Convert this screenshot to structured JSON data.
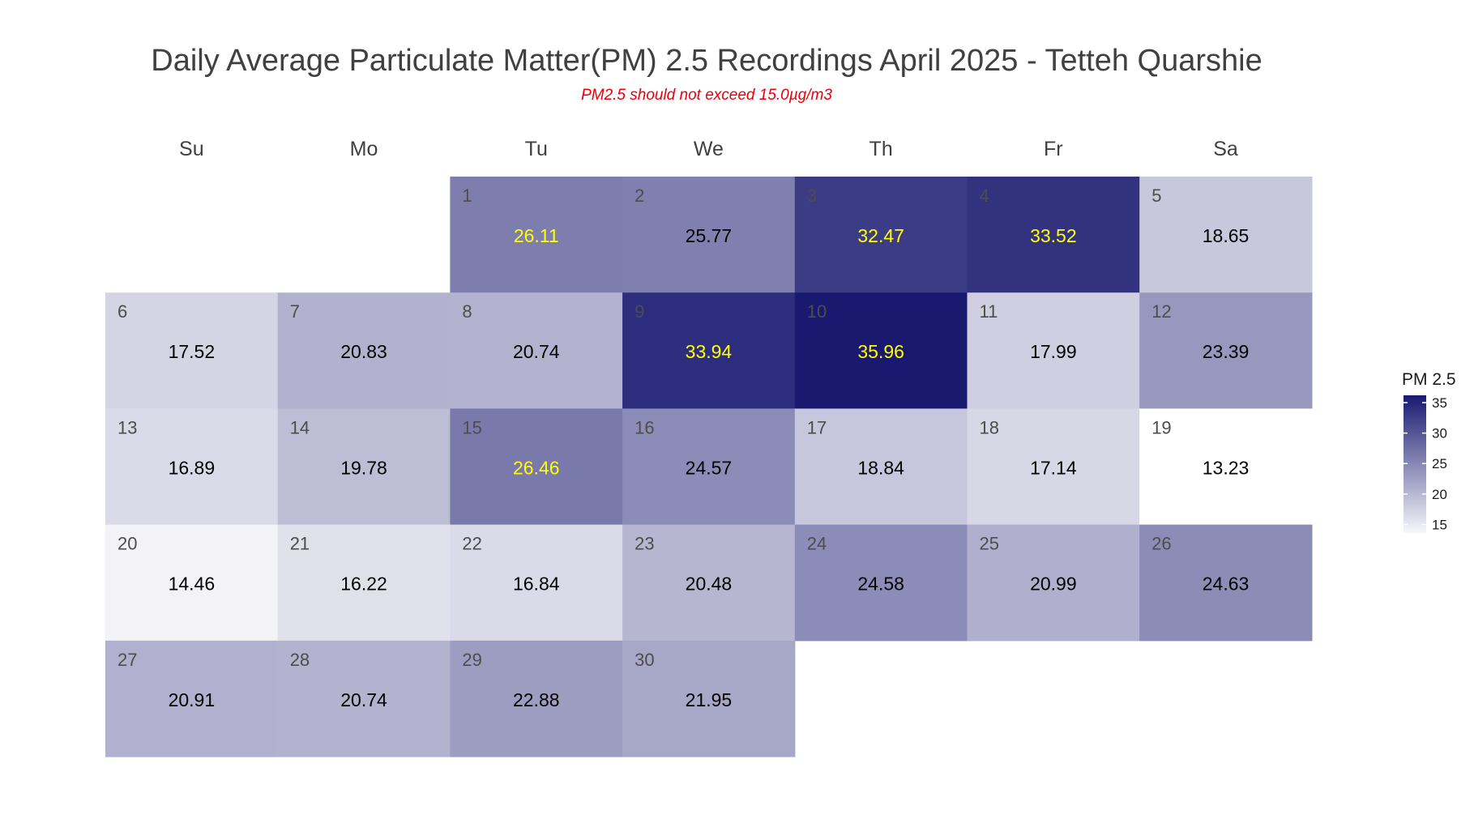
{
  "chart_data": {
    "type": "heatmap",
    "title": "Daily Average Particulate Matter(PM) 2.5 Recordings April 2025 -  Tetteh Quarshie",
    "subtitle": "PM2.5 should not exceed 15.0µg/m3",
    "weekdays": [
      "Su",
      "Mo",
      "Tu",
      "We",
      "Th",
      "Fr",
      "Sa"
    ],
    "first_weekday_index": 2,
    "days": [
      {
        "day": "1",
        "value": "26.11"
      },
      {
        "day": "2",
        "value": "25.77"
      },
      {
        "day": "3",
        "value": "32.47"
      },
      {
        "day": "4",
        "value": "33.52"
      },
      {
        "day": "5",
        "value": "18.65"
      },
      {
        "day": "6",
        "value": "17.52"
      },
      {
        "day": "7",
        "value": "20.83"
      },
      {
        "day": "8",
        "value": "20.74"
      },
      {
        "day": "9",
        "value": "33.94"
      },
      {
        "day": "10",
        "value": "35.96"
      },
      {
        "day": "11",
        "value": "17.99"
      },
      {
        "day": "12",
        "value": "23.39"
      },
      {
        "day": "13",
        "value": "16.89"
      },
      {
        "day": "14",
        "value": "19.78"
      },
      {
        "day": "15",
        "value": "26.46"
      },
      {
        "day": "16",
        "value": "24.57"
      },
      {
        "day": "17",
        "value": "18.84"
      },
      {
        "day": "18",
        "value": "17.14"
      },
      {
        "day": "19",
        "value": "13.23"
      },
      {
        "day": "20",
        "value": "14.46"
      },
      {
        "day": "21",
        "value": "16.22"
      },
      {
        "day": "22",
        "value": "16.84"
      },
      {
        "day": "23",
        "value": "20.48"
      },
      {
        "day": "24",
        "value": "24.58"
      },
      {
        "day": "25",
        "value": "20.99"
      },
      {
        "day": "26",
        "value": "24.63"
      },
      {
        "day": "27",
        "value": "20.91"
      },
      {
        "day": "28",
        "value": "20.74"
      },
      {
        "day": "29",
        "value": "22.88"
      },
      {
        "day": "30",
        "value": "21.95"
      }
    ],
    "color_scale": {
      "low_color": "#ffffff",
      "high_color": "#191970",
      "min": 13.23,
      "max": 35.96
    },
    "label_colors": {
      "normal": "#000000",
      "highlight": "#ffff00"
    },
    "highlight_days": [
      "1",
      "3",
      "4",
      "9",
      "10",
      "15"
    ],
    "legend": {
      "title": "PM 2.5",
      "ticks": [
        "15",
        "20",
        "25",
        "30",
        "35"
      ],
      "placement": "right"
    }
  }
}
